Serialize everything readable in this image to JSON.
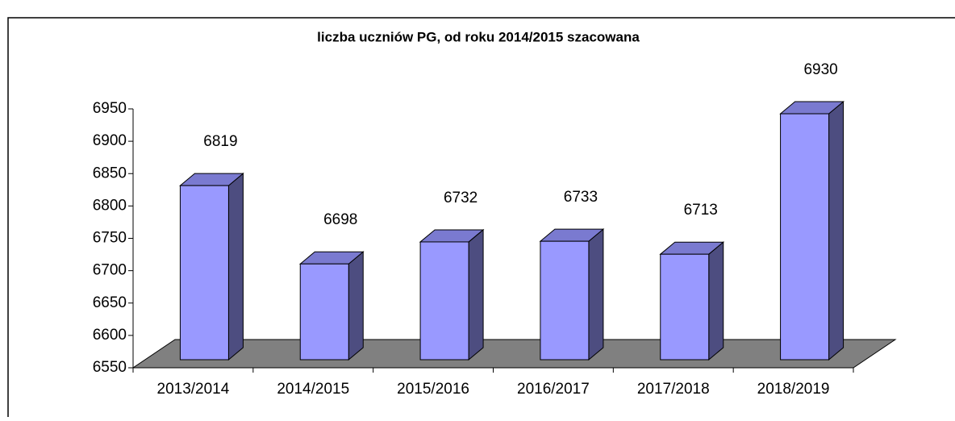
{
  "chart_data": {
    "type": "bar3d",
    "title": "liczba uczniów PG, od roku 2014/2015 szacowana",
    "categories": [
      "2013/2014",
      "2014/2015",
      "2015/2016",
      "2016/2017",
      "2017/2018",
      "2018/2019"
    ],
    "values": [
      6819,
      6698,
      6732,
      6733,
      6713,
      6930
    ],
    "color": "#9999ff",
    "ylim": [
      6550,
      6950
    ],
    "yticks": [
      6550,
      6600,
      6650,
      6700,
      6750,
      6800,
      6850,
      6900,
      6950
    ],
    "grid": false
  }
}
